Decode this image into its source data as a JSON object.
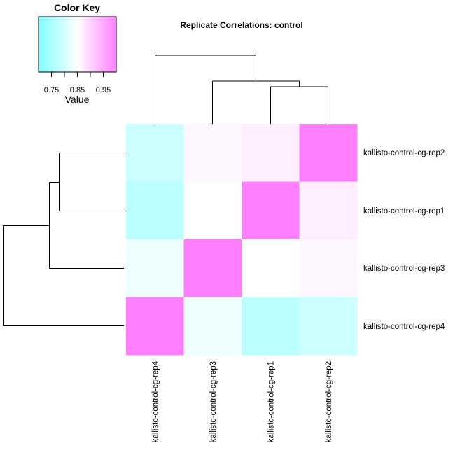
{
  "chart_data": {
    "type": "heatmap",
    "title": "Replicate Correlations: control",
    "row_labels": [
      "kallisto-control-cg-rep2",
      "kallisto-control-cg-rep1",
      "kallisto-control-cg-rep3",
      "kallisto-control-cg-rep4"
    ],
    "col_labels": [
      "kallisto-control-cg-rep4",
      "kallisto-control-cg-rep3",
      "kallisto-control-cg-rep1",
      "kallisto-control-cg-rep2"
    ],
    "values": [
      [
        0.79,
        0.86,
        0.87,
        1.0
      ],
      [
        0.77,
        0.85,
        1.0,
        0.87
      ],
      [
        0.83,
        1.0,
        0.85,
        0.86
      ],
      [
        1.0,
        0.83,
        0.77,
        0.79
      ]
    ],
    "color_key": {
      "title": "Color Key",
      "xlabel": "Value",
      "range": [
        0.7,
        1.0
      ],
      "ticks": [
        0.75,
        0.85,
        0.95
      ],
      "tick_labels": [
        "0.75",
        "0.85",
        "0.95"
      ],
      "low_color": "#7fffff",
      "mid_color": "#ffffff",
      "high_color": "#ff80ff"
    },
    "row_dendrogram": [
      [
        "kallisto-control-cg-rep2",
        "kallisto-control-cg-rep1"
      ],
      "kallisto-control-cg-rep3",
      "kallisto-control-cg-rep4"
    ],
    "col_dendrogram": [
      "kallisto-control-cg-rep4",
      [
        "kallisto-control-cg-rep3",
        [
          "kallisto-control-cg-rep1",
          "kallisto-control-cg-rep2"
        ]
      ]
    ]
  }
}
